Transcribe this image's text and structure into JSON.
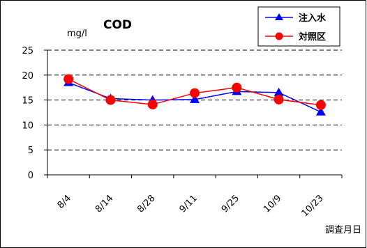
{
  "chart_data": {
    "type": "line",
    "title": "COD",
    "unit_label": "mg/l",
    "xlabel": "調査月日",
    "categories": [
      "8/4",
      "8/14",
      "8/28",
      "9/11",
      "9/25",
      "10/9",
      "10/23"
    ],
    "y_ticks": [
      "0",
      "5",
      "10",
      "15",
      "20",
      "25"
    ],
    "ylim": [
      0,
      25
    ],
    "grid": "horizontal dashed",
    "legend_position": "top-right",
    "series": [
      {
        "name": "注入水",
        "marker": "triangle",
        "color": "#0000ff",
        "values": [
          18.5,
          15.3,
          15.0,
          15.1,
          16.7,
          16.5,
          12.6
        ]
      },
      {
        "name": "対照区",
        "marker": "circle",
        "color": "#ff0000",
        "values": [
          19.2,
          15.0,
          14.1,
          16.4,
          17.5,
          15.1,
          14.0
        ]
      }
    ]
  }
}
